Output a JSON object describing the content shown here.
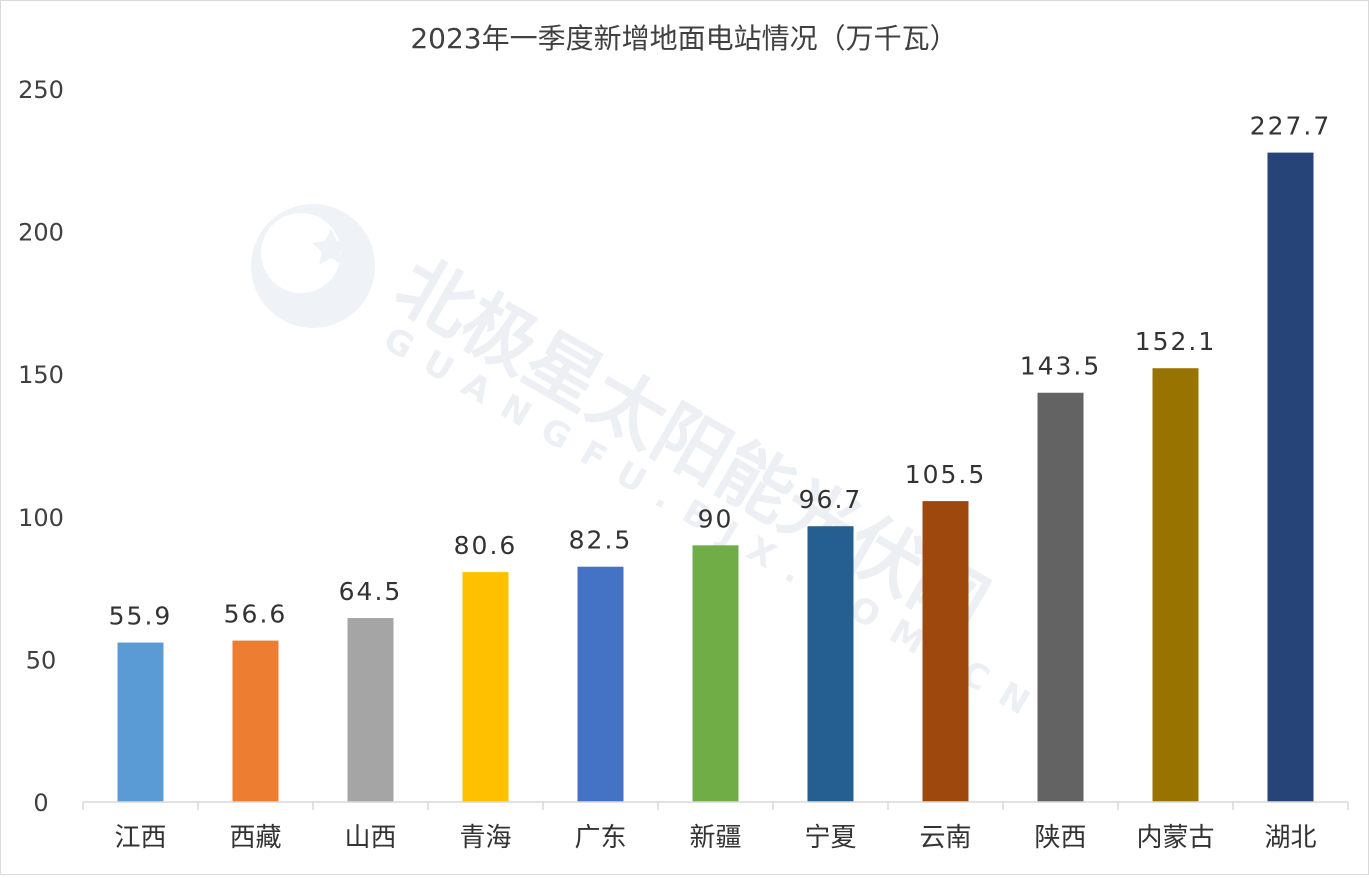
{
  "chart_data": {
    "type": "bar",
    "title": "2023年一季度新增地面电站情况（万千瓦）",
    "xlabel": "",
    "ylabel": "",
    "ylim": [
      0,
      250
    ],
    "yticks": [
      0,
      50,
      100,
      150,
      200,
      250
    ],
    "grid": false,
    "legend": "none",
    "categories": [
      "江西",
      "西藏",
      "山西",
      "青海",
      "广东",
      "新疆",
      "宁夏",
      "云南",
      "陕西",
      "内蒙古",
      "湖北"
    ],
    "values": [
      55.9,
      56.6,
      64.5,
      80.6,
      82.5,
      90,
      96.7,
      105.5,
      143.5,
      152.1,
      227.7
    ],
    "data_labels": [
      "55.9",
      "56.6",
      "64.5",
      "80.6",
      "82.5",
      "90",
      "96.7",
      "105.5",
      "143.5",
      "152.1",
      "227.7"
    ],
    "colors": [
      "#5b9bd5",
      "#ed7d31",
      "#a5a5a5",
      "#ffc000",
      "#4472c4",
      "#70ad47",
      "#255e91",
      "#9e480e",
      "#636363",
      "#997300",
      "#264478"
    ]
  },
  "watermark": {
    "text": "北极星太阳能光伏网",
    "subtext": "GUANGFU.BJX.COM.CN"
  },
  "colors": {
    "axis": "#d9d9d9",
    "text": "#404040"
  }
}
